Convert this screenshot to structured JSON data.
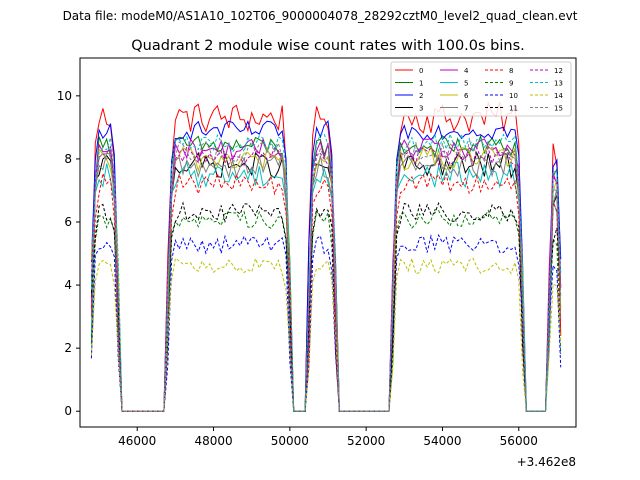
{
  "figure": {
    "suptitle": "Data file: modeM0/AS1A10_102T06_9000004078_28292cztM0_level2_quad_clean.evt"
  },
  "chart_data": {
    "type": "line",
    "title": "Quadrant 2 module wise count rates with 100.0s bins.",
    "xlabel": "",
    "ylabel": "",
    "x_offset_label": "+3.462e8",
    "xlim": [
      44500,
      57500
    ],
    "ylim": [
      -0.5,
      11.2
    ],
    "xticks": [
      46000,
      48000,
      50000,
      52000,
      54000,
      56000
    ],
    "yticks": [
      0,
      2,
      4,
      6,
      8,
      10
    ],
    "grid": false,
    "legend_position": "top-right",
    "segments": [
      {
        "start": 44800,
        "end": 45500
      },
      {
        "start": 46800,
        "end": 50000
      },
      {
        "start": 50500,
        "end": 51200
      },
      {
        "start": 52700,
        "end": 56100
      },
      {
        "start": 56800,
        "end": 57100
      }
    ],
    "gaps": [
      [
        45500,
        46800
      ],
      [
        50000,
        50500
      ],
      [
        51200,
        52700
      ],
      [
        56100,
        56800
      ]
    ],
    "series": [
      {
        "name": "0",
        "color": "#ff0000",
        "dash": "solid",
        "level": 9.3,
        "noise": 0.5
      },
      {
        "name": "1",
        "color": "#008000",
        "dash": "solid",
        "level": 8.4,
        "noise": 0.35
      },
      {
        "name": "2",
        "color": "#0000ff",
        "dash": "solid",
        "level": 8.9,
        "noise": 0.3
      },
      {
        "name": "3",
        "color": "#000000",
        "dash": "solid",
        "level": 7.8,
        "noise": 0.4
      },
      {
        "name": "4",
        "color": "#bf00bf",
        "dash": "solid",
        "level": 8.3,
        "noise": 0.35
      },
      {
        "name": "5",
        "color": "#00bfbf",
        "dash": "solid",
        "level": 7.5,
        "noise": 0.4
      },
      {
        "name": "6",
        "color": "#bfbf00",
        "dash": "solid",
        "level": 8.0,
        "noise": 0.4
      },
      {
        "name": "7",
        "color": "#808080",
        "dash": "solid",
        "level": 7.8,
        "noise": 0.4
      },
      {
        "name": "8",
        "color": "#ff0000",
        "dash": "dashed",
        "level": 7.2,
        "noise": 0.35
      },
      {
        "name": "9",
        "color": "#008000",
        "dash": "dashed",
        "level": 6.1,
        "noise": 0.3
      },
      {
        "name": "10",
        "color": "#0000ff",
        "dash": "dashed",
        "level": 5.3,
        "noise": 0.3
      },
      {
        "name": "11",
        "color": "#000000",
        "dash": "dashed",
        "level": 6.3,
        "noise": 0.3
      },
      {
        "name": "12",
        "color": "#bf00bf",
        "dash": "dashed",
        "level": 8.1,
        "noise": 0.3
      },
      {
        "name": "13",
        "color": "#00bfbf",
        "dash": "dashed",
        "level": 8.5,
        "noise": 0.3
      },
      {
        "name": "14",
        "color": "#bfbf00",
        "dash": "dashed",
        "level": 4.6,
        "noise": 0.25
      },
      {
        "name": "15",
        "color": "#808080",
        "dash": "dashed",
        "level": 8.2,
        "noise": 0.35
      }
    ]
  }
}
